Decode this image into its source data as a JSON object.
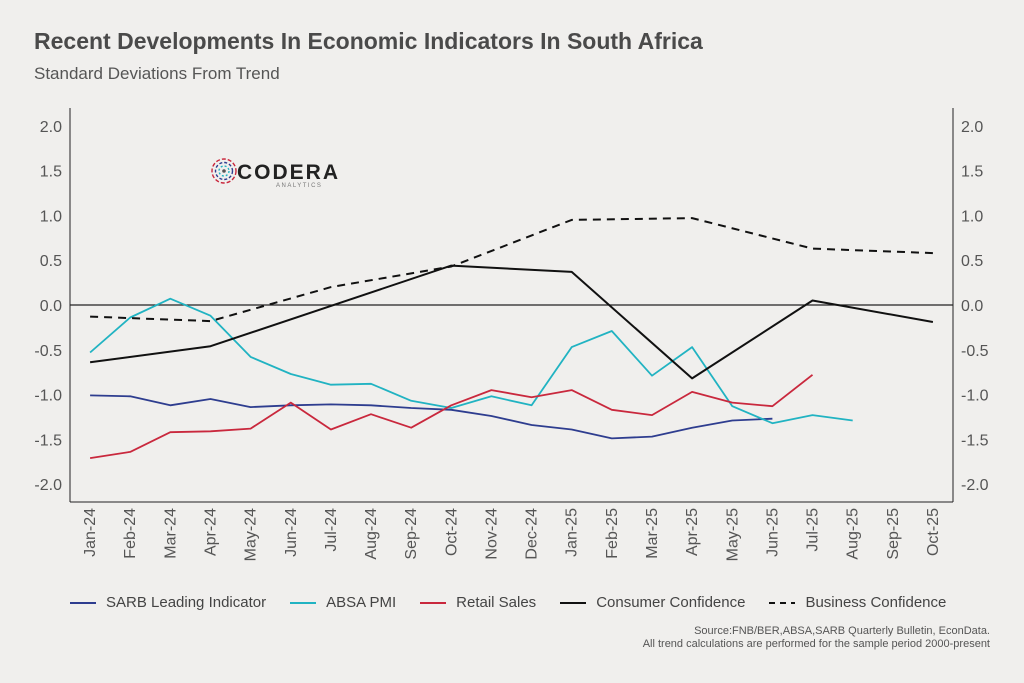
{
  "title": "Recent Developments In Economic Indicators In South Africa",
  "subtitle": "Standard Deviations From Trend",
  "logo": {
    "brand": "CODERA",
    "sub": "ANALYTICS"
  },
  "source": {
    "line1": "Source:FNB/BER,ABSA,SARB Quarterly Bulletin, EconData.",
    "line2": "All trend calculations are performed for the sample period 2000-present"
  },
  "chart_data": {
    "type": "line",
    "x": [
      "Jan-24",
      "Feb-24",
      "Mar-24",
      "Apr-24",
      "May-24",
      "Jun-24",
      "Jul-24",
      "Aug-24",
      "Sep-24",
      "Oct-24",
      "Nov-24",
      "Dec-24",
      "Jan-25",
      "Feb-25",
      "Mar-25",
      "Apr-25",
      "May-25",
      "Jun-25",
      "Jul-25",
      "Aug-25",
      "Sep-25",
      "Oct-25"
    ],
    "ylim": [
      -2.2,
      2.2
    ],
    "yticks": [
      "2.0",
      "1.5",
      "1.0",
      "0.5",
      "0.0",
      "-0.5",
      "-1.0",
      "-1.5",
      "-2.0"
    ],
    "ytick_values": [
      2.0,
      1.5,
      1.0,
      0.5,
      0.0,
      -0.5,
      -1.0,
      -1.5,
      -2.0
    ],
    "grid": false,
    "zero_line": true,
    "legend_position": "bottom",
    "series": [
      {
        "name": "SARB Leading Indicator",
        "color": "#2e3d8f",
        "dash": "solid",
        "values": [
          -1.01,
          -1.02,
          -1.12,
          -1.05,
          -1.14,
          -1.12,
          -1.11,
          -1.12,
          -1.15,
          -1.17,
          -1.24,
          -1.34,
          -1.39,
          -1.49,
          -1.47,
          -1.37,
          -1.29,
          -1.27,
          null,
          null,
          null,
          null
        ]
      },
      {
        "name": "ABSA PMI",
        "color": "#21b3c2",
        "dash": "solid",
        "values": [
          -0.53,
          -0.14,
          0.07,
          -0.12,
          -0.58,
          -0.77,
          -0.89,
          -0.88,
          -1.07,
          -1.15,
          -1.02,
          -1.12,
          -0.47,
          -0.29,
          -0.79,
          -0.47,
          -1.13,
          -1.32,
          -1.23,
          -1.29,
          null,
          null
        ]
      },
      {
        "name": "Retail Sales",
        "color": "#c9283d",
        "dash": "solid",
        "values": [
          -1.71,
          -1.64,
          -1.42,
          -1.41,
          -1.38,
          -1.09,
          -1.39,
          -1.22,
          -1.37,
          -1.12,
          -0.95,
          -1.03,
          -0.95,
          -1.17,
          -1.23,
          -0.97,
          -1.09,
          -1.13,
          -0.78,
          null,
          null,
          null
        ]
      },
      {
        "name": "Consumer Confidence",
        "color": "#111111",
        "dash": "solid",
        "values": [
          -0.64,
          null,
          null,
          -0.46,
          null,
          null,
          null,
          null,
          null,
          0.44,
          null,
          null,
          0.37,
          null,
          null,
          -0.82,
          null,
          null,
          0.05,
          null,
          null,
          -0.19
        ]
      },
      {
        "name": "Business Confidence",
        "color": "#111111",
        "dash": "dashed",
        "values": [
          -0.13,
          null,
          null,
          -0.18,
          null,
          null,
          0.2,
          null,
          null,
          0.43,
          null,
          null,
          0.95,
          null,
          null,
          0.97,
          null,
          null,
          0.63,
          null,
          null,
          0.58
        ]
      }
    ]
  }
}
